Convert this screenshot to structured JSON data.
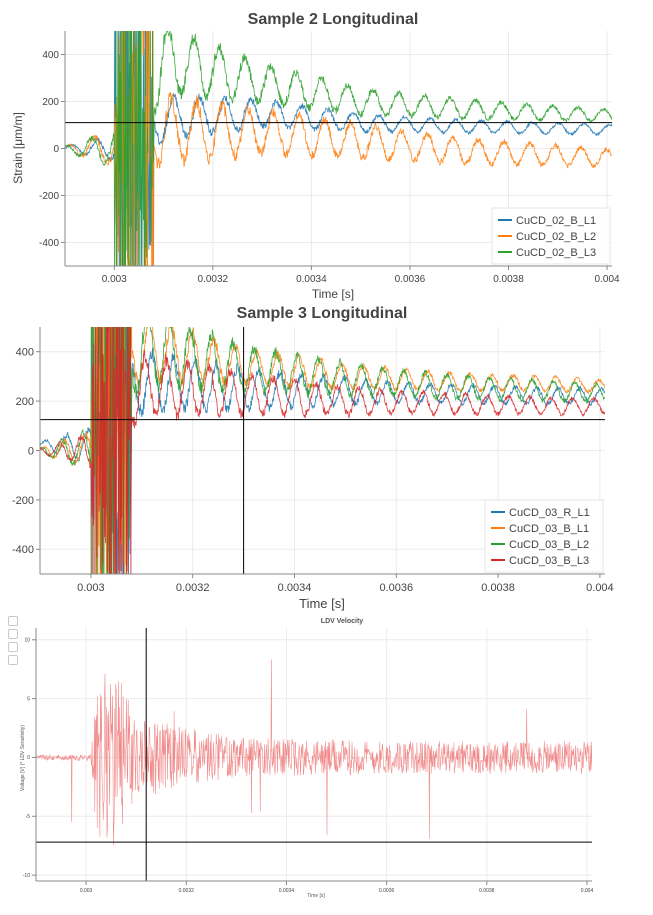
{
  "charts": {
    "sample2": {
      "title": "Sample 2 Longitudinal",
      "ylabel": "Strain [μm/m]",
      "xlabel": "Time [s]",
      "legend": [
        "CuCD_02_B_L1",
        "CuCD_02_B_L2",
        "CuCD_02_B_L3"
      ]
    },
    "sample3": {
      "title": "Sample 3 Longitudinal",
      "xlabel": "Time [s]",
      "legend": [
        "CuCD_03_R_L1",
        "CuCD_03_B_L1",
        "CuCD_03_B_L2",
        "CuCD_03_B_L3"
      ]
    },
    "ldv": {
      "title": "LDV Velocity",
      "ylabel": "Voltage [V] (* LDV Sensitivity)",
      "xlabel": "Time [s]"
    }
  },
  "chart_data": [
    {
      "type": "line",
      "title": "Sample 2 Longitudinal",
      "xlabel": "Time [s]",
      "ylabel": "Strain [μm/m]",
      "xlim": [
        0.0029,
        0.00401
      ],
      "ylim": [
        -500,
        500
      ],
      "x_ticks": [
        0.003,
        0.0032,
        0.0034,
        0.0036,
        0.0038,
        0.004
      ],
      "y_ticks": [
        400,
        200,
        0,
        -200,
        -400
      ],
      "grid": true,
      "legend_position": "bottom-right",
      "crosshair": {
        "x": null,
        "y": 110
      },
      "series": [
        {
          "name": "CuCD_02_B_L1",
          "color": "#1f77b4",
          "baseline": [
            [
              0.0029,
              0
            ],
            [
              0.00303,
              0
            ],
            [
              0.0031,
              130
            ],
            [
              0.0033,
              150
            ],
            [
              0.0035,
              110
            ],
            [
              0.0037,
              95
            ],
            [
              0.0039,
              85
            ],
            [
              0.00401,
              80
            ]
          ],
          "amplitude": [
            [
              0.0029,
              10
            ],
            [
              0.0031,
              90
            ],
            [
              0.0033,
              55
            ],
            [
              0.0036,
              30
            ],
            [
              0.00401,
              20
            ]
          ],
          "period": 5.2e-05
        },
        {
          "name": "CuCD_02_B_L2",
          "color": "#ff7f0e",
          "baseline": [
            [
              0.0029,
              0
            ],
            [
              0.00303,
              0
            ],
            [
              0.0031,
              80
            ],
            [
              0.0033,
              70
            ],
            [
              0.0035,
              30
            ],
            [
              0.0037,
              -10
            ],
            [
              0.0039,
              -30
            ],
            [
              0.00401,
              -40
            ]
          ],
          "amplitude": [
            [
              0.0029,
              10
            ],
            [
              0.0031,
              140
            ],
            [
              0.0033,
              90
            ],
            [
              0.0036,
              60
            ],
            [
              0.00401,
              35
            ]
          ],
          "period": 5.2e-05
        },
        {
          "name": "CuCD_02_B_L3",
          "color": "#2ca02c",
          "baseline": [
            [
              0.0029,
              0
            ],
            [
              0.00303,
              0
            ],
            [
              0.0031,
              380
            ],
            [
              0.0033,
              280
            ],
            [
              0.0035,
              200
            ],
            [
              0.0037,
              170
            ],
            [
              0.0039,
              150
            ],
            [
              0.00401,
              140
            ]
          ],
          "amplitude": [
            [
              0.0029,
              10
            ],
            [
              0.0031,
              140
            ],
            [
              0.0033,
              80
            ],
            [
              0.0036,
              45
            ],
            [
              0.00401,
              25
            ]
          ],
          "period": 5.2e-05
        }
      ]
    },
    {
      "type": "line",
      "title": "Sample 3 Longitudinal",
      "xlabel": "Time [s]",
      "xlim": [
        0.0029,
        0.00401
      ],
      "ylim": [
        -500,
        500
      ],
      "x_ticks": [
        0.003,
        0.0032,
        0.0034,
        0.0036,
        0.0038,
        0.004
      ],
      "y_ticks": [
        400,
        200,
        0,
        -200,
        -400
      ],
      "grid": true,
      "legend_position": "bottom-right",
      "crosshair": {
        "x": 0.0033,
        "y": 125
      },
      "series": [
        {
          "name": "CuCD_03_R_L1",
          "color": "#1f77b4",
          "baseline": [
            [
              0.0029,
              20
            ],
            [
              0.003,
              20
            ],
            [
              0.0031,
              280
            ],
            [
              0.0033,
              250
            ],
            [
              0.0035,
              240
            ],
            [
              0.0037,
              230
            ],
            [
              0.0039,
              220
            ],
            [
              0.00401,
              220
            ]
          ],
          "amplitude": [
            [
              0.0029,
              15
            ],
            [
              0.0031,
              120
            ],
            [
              0.0033,
              80
            ],
            [
              0.0036,
              40
            ],
            [
              0.00401,
              30
            ]
          ],
          "period": 4.2e-05
        },
        {
          "name": "CuCD_03_B_L1",
          "color": "#ff7f0e",
          "baseline": [
            [
              0.0029,
              0
            ],
            [
              0.003,
              0
            ],
            [
              0.0031,
              420
            ],
            [
              0.0033,
              340
            ],
            [
              0.0035,
              300
            ],
            [
              0.0037,
              280
            ],
            [
              0.0039,
              270
            ],
            [
              0.00401,
              260
            ]
          ],
          "amplitude": [
            [
              0.0029,
              10
            ],
            [
              0.0031,
              130
            ],
            [
              0.0033,
              70
            ],
            [
              0.0036,
              40
            ],
            [
              0.00401,
              25
            ]
          ],
          "period": 4.2e-05
        },
        {
          "name": "CuCD_03_B_L2",
          "color": "#2ca02c",
          "baseline": [
            [
              0.0029,
              0
            ],
            [
              0.003,
              0
            ],
            [
              0.0031,
              420
            ],
            [
              0.0033,
              330
            ],
            [
              0.0035,
              290
            ],
            [
              0.0037,
              260
            ],
            [
              0.0039,
              240
            ],
            [
              0.00401,
              230
            ]
          ],
          "amplitude": [
            [
              0.0029,
              10
            ],
            [
              0.0031,
              150
            ],
            [
              0.0033,
              90
            ],
            [
              0.0036,
              50
            ],
            [
              0.00401,
              35
            ]
          ],
          "period": 4.2e-05
        },
        {
          "name": "CuCD_03_B_L3",
          "color": "#d62728",
          "baseline": [
            [
              0.0029,
              0
            ],
            [
              0.003,
              0
            ],
            [
              0.0031,
              260
            ],
            [
              0.0033,
              230
            ],
            [
              0.0035,
              200
            ],
            [
              0.0037,
              190
            ],
            [
              0.0039,
              180
            ],
            [
              0.00401,
              180
            ]
          ],
          "amplitude": [
            [
              0.0029,
              10
            ],
            [
              0.0031,
              120
            ],
            [
              0.0033,
              80
            ],
            [
              0.0036,
              45
            ],
            [
              0.00401,
              30
            ]
          ],
          "period": 4.2e-05
        }
      ]
    },
    {
      "type": "line",
      "title": "LDV Velocity",
      "xlabel": "Time [s]",
      "ylabel": "Voltage [V] (* LDV Sensitivity)",
      "xlim": [
        0.0029,
        0.00401
      ],
      "ylim": [
        -10.5,
        11
      ],
      "x_ticks": [
        0.003,
        0.0032,
        0.0034,
        0.0036,
        0.0038,
        0.004
      ],
      "y_ticks": [
        10,
        5,
        0,
        -5,
        -10
      ],
      "grid": true,
      "crosshair": {
        "x": 0.00312,
        "y": -7.2
      },
      "series": [
        {
          "name": "",
          "color": "#f08080",
          "baseline": [
            [
              0.0029,
              0
            ],
            [
              0.00401,
              0
            ]
          ],
          "amplitude": [
            [
              0.0029,
              0.15
            ],
            [
              0.00301,
              0.2
            ],
            [
              0.00302,
              5
            ],
            [
              0.00306,
              5.5
            ],
            [
              0.0031,
              2.5
            ],
            [
              0.0033,
              1.2
            ],
            [
              0.0036,
              1.0
            ],
            [
              0.00401,
              1.0
            ]
          ],
          "period": 4.5e-06
        }
      ]
    }
  ]
}
